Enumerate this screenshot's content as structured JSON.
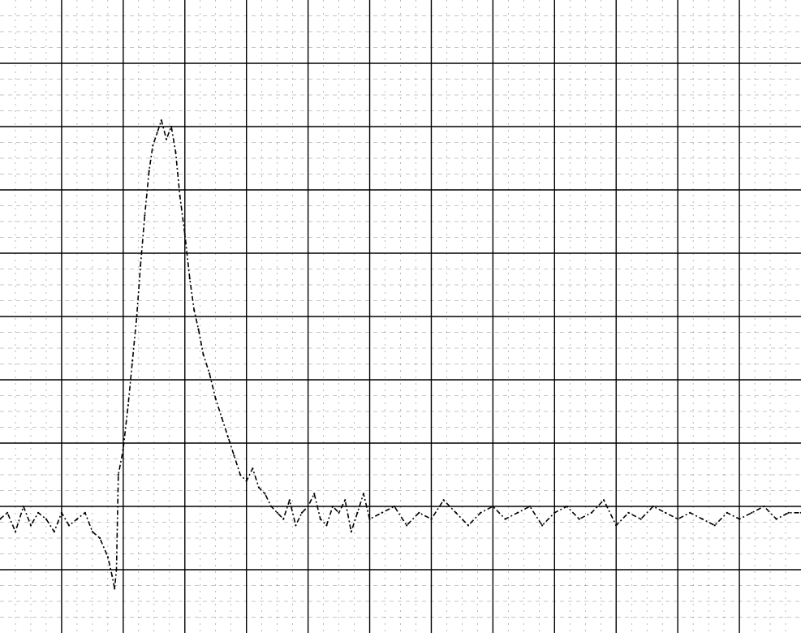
{
  "chart_data": {
    "type": "line",
    "title": "",
    "xlabel": "",
    "ylabel": "",
    "grid": true,
    "axis_labels_printed": false,
    "x_major_divisions": 13,
    "y_major_divisions": 10,
    "xlim": [
      0,
      13
    ],
    "ylim": [
      0,
      10
    ],
    "colors": {
      "trace": "#000000",
      "grid": "#000000",
      "background": "#ffffff"
    },
    "series": [
      {
        "name": "",
        "x": [
          0.0,
          0.12,
          0.25,
          0.38,
          0.5,
          0.62,
          0.75,
          0.88,
          1.0,
          1.12,
          1.25,
          1.38,
          1.5,
          1.62,
          1.75,
          1.82,
          1.86,
          1.89,
          1.92,
          2.0,
          2.08,
          2.15,
          2.22,
          2.28,
          2.35,
          2.42,
          2.48,
          2.55,
          2.62,
          2.7,
          2.78,
          2.85,
          2.92,
          3.0,
          3.08,
          3.15,
          3.22,
          3.3,
          3.4,
          3.5,
          3.6,
          3.7,
          3.8,
          3.9,
          4.0,
          4.1,
          4.2,
          4.3,
          4.4,
          4.5,
          4.6,
          4.7,
          4.8,
          4.9,
          5.0,
          5.1,
          5.2,
          5.3,
          5.4,
          5.5,
          5.6,
          5.7,
          5.8,
          5.9,
          6.0,
          6.2,
          6.4,
          6.6,
          6.8,
          7.0,
          7.2,
          7.4,
          7.6,
          7.8,
          8.0,
          8.2,
          8.4,
          8.6,
          8.8,
          9.0,
          9.2,
          9.4,
          9.6,
          9.8,
          10.0,
          10.2,
          10.4,
          10.6,
          10.8,
          11.0,
          11.2,
          11.4,
          11.6,
          11.8,
          12.0,
          12.2,
          12.4,
          12.6,
          12.8,
          13.0
        ],
        "y": [
          1.8,
          1.9,
          1.6,
          2.0,
          1.7,
          1.9,
          1.8,
          1.6,
          1.9,
          1.7,
          1.8,
          1.9,
          1.6,
          1.5,
          1.2,
          0.9,
          0.7,
          1.0,
          2.5,
          2.9,
          3.6,
          4.3,
          5.0,
          5.8,
          6.6,
          7.3,
          7.7,
          7.9,
          8.1,
          7.8,
          8.0,
          7.6,
          6.9,
          6.3,
          5.6,
          5.1,
          4.8,
          4.4,
          4.1,
          3.7,
          3.4,
          3.1,
          2.8,
          2.5,
          2.4,
          2.6,
          2.3,
          2.2,
          2.0,
          1.9,
          1.8,
          2.1,
          1.7,
          1.9,
          2.0,
          2.2,
          1.8,
          1.7,
          2.0,
          1.9,
          2.1,
          1.6,
          1.9,
          2.2,
          1.8,
          1.9,
          2.0,
          1.7,
          1.9,
          1.8,
          2.1,
          1.9,
          1.7,
          1.9,
          2.0,
          1.8,
          1.9,
          2.0,
          1.7,
          1.9,
          2.0,
          1.8,
          1.9,
          2.1,
          1.7,
          1.9,
          1.8,
          2.0,
          1.9,
          1.8,
          1.9,
          1.8,
          1.7,
          1.9,
          1.8,
          1.9,
          2.0,
          1.8,
          1.9,
          1.9
        ]
      }
    ]
  }
}
